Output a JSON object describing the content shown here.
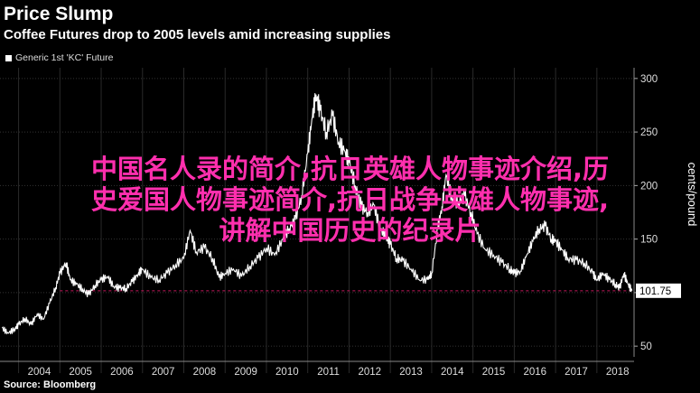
{
  "title": "Price Slump",
  "subtitle": "Coffee Futures drop to 2005 levels amid increasing supplies",
  "source": "Source: Bloomberg",
  "overlay_text": {
    "line1": "中国名人录的简介,抗日英雄人物事迹介绍,历",
    "line2": "史爱国人物事迹简介,抗日战争英雄人物事迹,",
    "line3": "讲解中国历史的纪录片"
  },
  "colors": {
    "background": "#000000",
    "line": "#ffffff",
    "reference_line": "#c2185b",
    "overlay": "#ff2fae"
  },
  "chart_data": {
    "type": "line",
    "title": "Price Slump",
    "subtitle": "Coffee Futures drop to 2005 levels amid increasing supplies",
    "ylabel": "cents/pound",
    "ylim": [
      40,
      310
    ],
    "yticks": [
      50,
      100,
      150,
      200,
      250,
      300
    ],
    "xlim": [
      2003.55,
      2018.9
    ],
    "xticks": [
      "2004",
      "2005",
      "2006",
      "2007",
      "2008",
      "2009",
      "2010",
      "2011",
      "2012",
      "2013",
      "2014",
      "2015",
      "2016",
      "2017",
      "2018"
    ],
    "legend": "top-left",
    "last_value": 101.75,
    "last_value_label": "101.75",
    "reference_line": 101.75,
    "series": [
      {
        "name": "Generic 1st 'KC' Future",
        "x": [
          2003.6,
          2003.75,
          2003.9,
          2004.0,
          2004.15,
          2004.3,
          2004.45,
          2004.6,
          2004.75,
          2004.9,
          2005.0,
          2005.15,
          2005.25,
          2005.4,
          2005.55,
          2005.7,
          2005.85,
          2006.0,
          2006.15,
          2006.3,
          2006.45,
          2006.6,
          2006.75,
          2006.9,
          2007.0,
          2007.2,
          2007.4,
          2007.6,
          2007.8,
          2008.0,
          2008.15,
          2008.3,
          2008.5,
          2008.7,
          2008.85,
          2009.0,
          2009.2,
          2009.4,
          2009.6,
          2009.8,
          2010.0,
          2010.2,
          2010.4,
          2010.55,
          2010.7,
          2010.85,
          2011.0,
          2011.1,
          2011.2,
          2011.3,
          2011.45,
          2011.6,
          2011.75,
          2011.9,
          2012.0,
          2012.15,
          2012.3,
          2012.45,
          2012.6,
          2012.75,
          2012.9,
          2013.0,
          2013.15,
          2013.3,
          2013.5,
          2013.7,
          2013.9,
          2014.0,
          2014.15,
          2014.25,
          2014.35,
          2014.5,
          2014.65,
          2014.8,
          2014.95,
          2015.1,
          2015.3,
          2015.5,
          2015.7,
          2015.9,
          2016.0,
          2016.15,
          2016.3,
          2016.45,
          2016.6,
          2016.75,
          2016.9,
          2017.0,
          2017.15,
          2017.3,
          2017.5,
          2017.7,
          2017.9,
          2018.0,
          2018.15,
          2018.3,
          2018.45,
          2018.55,
          2018.65,
          2018.75,
          2018.85
        ],
        "values": [
          67,
          62,
          66,
          70,
          76,
          70,
          80,
          75,
          90,
          105,
          118,
          128,
          112,
          108,
          103,
          98,
          107,
          112,
          115,
          106,
          104,
          104,
          110,
          118,
          122,
          114,
          112,
          118,
          126,
          132,
          158,
          138,
          142,
          132,
          114,
          118,
          122,
          115,
          125,
          132,
          142,
          135,
          150,
          160,
          168,
          190,
          230,
          262,
          285,
          270,
          250,
          265,
          240,
          232,
          222,
          200,
          180,
          175,
          182,
          160,
          152,
          145,
          132,
          130,
          122,
          112,
          112,
          118,
          160,
          180,
          210,
          185,
          185,
          190,
          175,
          155,
          140,
          135,
          128,
          122,
          118,
          120,
          135,
          148,
          160,
          162,
          150,
          148,
          140,
          132,
          130,
          128,
          118,
          112,
          118,
          112,
          108,
          104,
          118,
          108,
          101.75
        ]
      }
    ]
  }
}
